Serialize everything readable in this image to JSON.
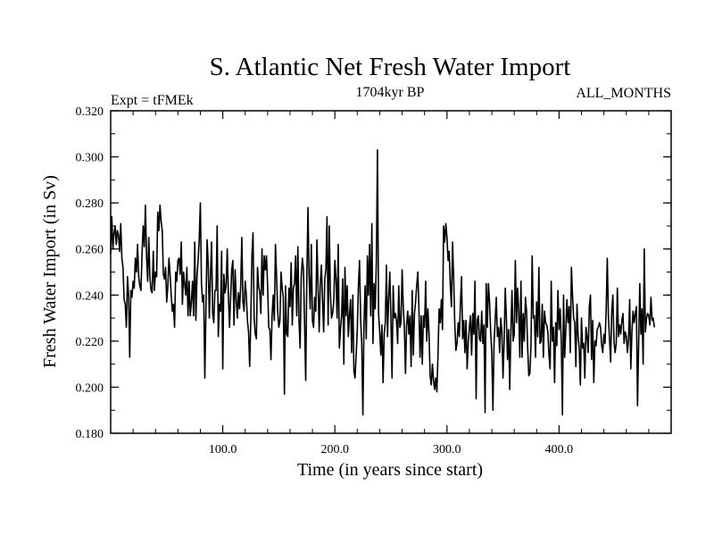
{
  "chart_data": {
    "type": "line",
    "title": "S. Atlantic Net Fresh Water Import",
    "subtitle": "1704kyr BP",
    "left_label": "Expt = tFMEk",
    "right_label": "ALL_MONTHS",
    "xlabel": "Time (in years since start)",
    "ylabel": "Fresh Water Import (in Sv)",
    "xlim": [
      0,
      500
    ],
    "ylim": [
      0.18,
      0.32
    ],
    "x_ticks": [
      100,
      200,
      300,
      400
    ],
    "x_tick_labels": [
      "100.0",
      "200.0",
      "300.0",
      "400.0"
    ],
    "y_ticks": [
      0.18,
      0.2,
      0.22,
      0.24,
      0.26,
      0.28,
      0.3,
      0.32
    ],
    "y_tick_labels": [
      "0.180",
      "0.200",
      "0.220",
      "0.240",
      "0.260",
      "0.280",
      "0.300",
      "0.320"
    ],
    "grid": false,
    "series": [
      {
        "name": "S. Atlantic net fresh water import",
        "color": "#000000",
        "x_start": 0,
        "x_step": 1,
        "values": [
          0.258,
          0.274,
          0.26,
          0.267,
          0.27,
          0.262,
          0.268,
          0.266,
          0.259,
          0.271,
          0.256,
          0.252,
          0.238,
          0.236,
          0.226,
          0.248,
          0.24,
          0.213,
          0.242,
          0.239,
          0.246,
          0.243,
          0.256,
          0.25,
          0.262,
          0.248,
          0.244,
          0.242,
          0.258,
          0.27,
          0.261,
          0.279,
          0.257,
          0.246,
          0.265,
          0.248,
          0.242,
          0.241,
          0.259,
          0.242,
          0.25,
          0.248,
          0.276,
          0.268,
          0.279,
          0.272,
          0.268,
          0.249,
          0.247,
          0.252,
          0.237,
          0.244,
          0.256,
          0.249,
          0.24,
          0.233,
          0.236,
          0.226,
          0.25,
          0.246,
          0.255,
          0.256,
          0.249,
          0.263,
          0.236,
          0.25,
          0.245,
          0.24,
          0.252,
          0.231,
          0.246,
          0.231,
          0.237,
          0.246,
          0.231,
          0.263,
          0.229,
          0.248,
          0.255,
          0.264,
          0.28,
          0.245,
          0.237,
          0.24,
          0.204,
          0.234,
          0.264,
          0.254,
          0.23,
          0.248,
          0.263,
          0.232,
          0.228,
          0.242,
          0.242,
          0.27,
          0.222,
          0.236,
          0.233,
          0.259,
          0.208,
          0.249,
          0.241,
          0.244,
          0.26,
          0.24,
          0.226,
          0.239,
          0.251,
          0.255,
          0.227,
          0.251,
          0.238,
          0.23,
          0.241,
          0.234,
          0.244,
          0.265,
          0.237,
          0.233,
          0.246,
          0.24,
          0.229,
          0.224,
          0.209,
          0.229,
          0.257,
          0.267,
          0.23,
          0.223,
          0.221,
          0.252,
          0.244,
          0.241,
          0.232,
          0.26,
          0.24,
          0.257,
          0.251,
          0.257,
          0.244,
          0.226,
          0.225,
          0.212,
          0.231,
          0.24,
          0.229,
          0.262,
          0.248,
          0.233,
          0.226,
          0.229,
          0.25,
          0.243,
          0.239,
          0.197,
          0.244,
          0.223,
          0.222,
          0.243,
          0.235,
          0.254,
          0.227,
          0.243,
          0.245,
          0.257,
          0.231,
          0.261,
          0.229,
          0.217,
          0.248,
          0.256,
          0.251,
          0.227,
          0.203,
          0.248,
          0.278,
          0.248,
          0.234,
          0.262,
          0.229,
          0.226,
          0.239,
          0.233,
          0.264,
          0.244,
          0.224,
          0.245,
          0.253,
          0.238,
          0.224,
          0.247,
          0.251,
          0.274,
          0.227,
          0.27,
          0.241,
          0.23,
          0.232,
          0.237,
          0.255,
          0.247,
          0.23,
          0.262,
          0.217,
          0.225,
          0.231,
          0.247,
          0.21,
          0.252,
          0.231,
          0.244,
          0.222,
          0.231,
          0.238,
          0.215,
          0.24,
          0.207,
          0.204,
          0.214,
          0.225,
          0.244,
          0.255,
          0.229,
          0.219,
          0.188,
          0.228,
          0.244,
          0.221,
          0.257,
          0.24,
          0.262,
          0.231,
          0.271,
          0.219,
          0.245,
          0.234,
          0.254,
          0.303,
          0.232,
          0.224,
          0.214,
          0.227,
          0.202,
          0.223,
          0.228,
          0.253,
          0.222,
          0.239,
          0.25,
          0.23,
          0.204,
          0.244,
          0.23,
          0.232,
          0.229,
          0.219,
          0.244,
          0.226,
          0.228,
          0.251,
          0.235,
          0.226,
          0.206,
          0.227,
          0.233,
          0.223,
          0.231,
          0.209,
          0.242,
          0.214,
          0.232,
          0.237,
          0.244,
          0.25,
          0.234,
          0.213,
          0.231,
          0.21,
          0.231,
          0.226,
          0.246,
          0.22,
          0.234,
          0.223,
          0.205,
          0.201,
          0.21,
          0.203,
          0.199,
          0.204,
          0.198,
          0.214,
          0.234,
          0.228,
          0.238,
          0.225,
          0.27,
          0.263,
          0.271,
          0.265,
          0.255,
          0.259,
          0.244,
          0.235,
          0.263,
          0.247,
          0.227,
          0.216,
          0.219,
          0.228,
          0.222,
          0.236,
          0.248,
          0.221,
          0.229,
          0.215,
          0.229,
          0.208,
          0.219,
          0.226,
          0.231,
          0.214,
          0.232,
          0.223,
          0.246,
          0.195,
          0.229,
          0.231,
          0.221,
          0.22,
          0.233,
          0.219,
          0.227,
          0.189,
          0.245,
          0.226,
          0.245,
          0.237,
          0.224,
          0.215,
          0.19,
          0.219,
          0.229,
          0.239,
          0.222,
          0.226,
          0.215,
          0.23,
          0.224,
          0.204,
          0.22,
          0.243,
          0.23,
          0.212,
          0.225,
          0.199,
          0.224,
          0.242,
          0.22,
          0.223,
          0.255,
          0.228,
          0.243,
          0.233,
          0.213,
          0.246,
          0.213,
          0.232,
          0.22,
          0.239,
          0.233,
          0.217,
          0.205,
          0.206,
          0.219,
          0.257,
          0.23,
          0.231,
          0.213,
          0.237,
          0.222,
          0.252,
          0.219,
          0.22,
          0.236,
          0.213,
          0.233,
          0.228,
          0.227,
          0.224,
          0.214,
          0.208,
          0.246,
          0.22,
          0.226,
          0.202,
          0.228,
          0.218,
          0.242,
          0.225,
          0.234,
          0.22,
          0.188,
          0.24,
          0.213,
          0.225,
          0.238,
          0.228,
          0.235,
          0.215,
          0.252,
          0.24,
          0.23,
          0.228,
          0.209,
          0.236,
          0.222,
          0.217,
          0.201,
          0.23,
          0.217,
          0.219,
          0.204,
          0.226,
          0.222,
          0.215,
          0.235,
          0.24,
          0.212,
          0.229,
          0.202,
          0.22,
          0.218,
          0.225,
          0.226,
          0.228,
          0.226,
          0.218,
          0.215,
          0.223,
          0.219,
          0.233,
          0.256,
          0.231,
          0.221,
          0.211,
          0.233,
          0.24,
          0.22,
          0.215,
          0.219,
          0.243,
          0.222,
          0.227,
          0.223,
          0.229,
          0.232,
          0.219,
          0.224,
          0.222,
          0.215,
          0.221,
          0.238,
          0.208,
          0.224,
          0.233,
          0.228,
          0.232,
          0.235,
          0.192,
          0.219,
          0.245,
          0.223,
          0.234,
          0.21,
          0.26,
          0.224,
          0.23,
          0.232,
          0.231,
          0.227,
          0.239,
          0.229,
          0.23,
          0.226
        ]
      }
    ]
  }
}
